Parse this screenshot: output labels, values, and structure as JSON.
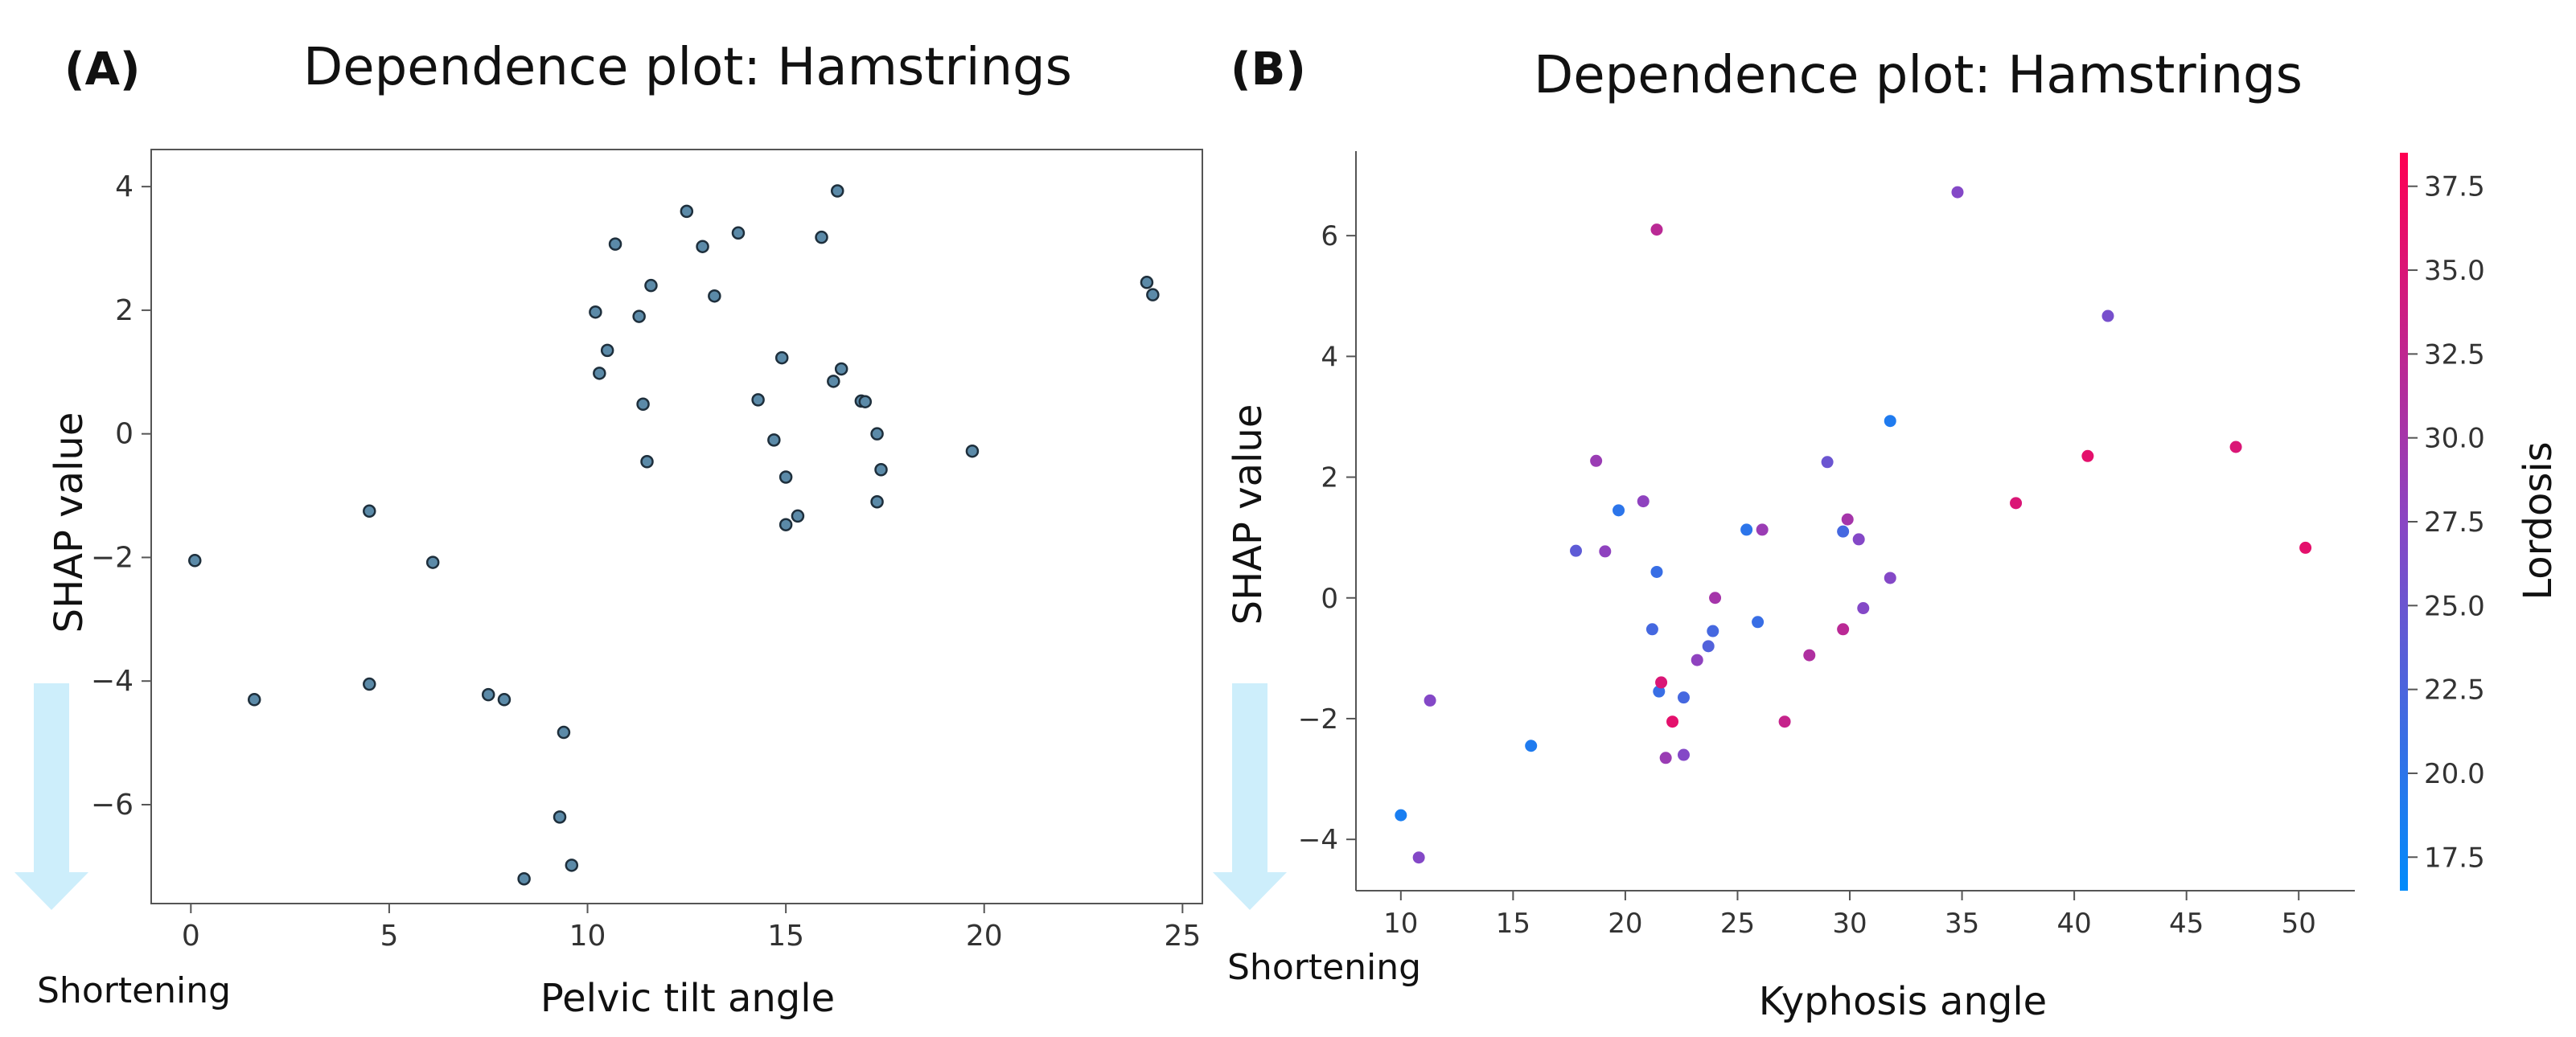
{
  "chart_data": [
    {
      "type": "scatter",
      "panel_label": "(A)",
      "title": "Dependence plot: Hamstrings",
      "xlabel": "Pelvic tilt angle",
      "ylabel": "SHAP value",
      "annotation": "Shortening",
      "xlim": [
        -1,
        25.5
      ],
      "ylim": [
        -7.6,
        4.6
      ],
      "xticks": [
        0,
        5,
        10,
        15,
        20,
        25
      ],
      "yticks": [
        -6,
        -4,
        -2,
        0,
        2,
        4
      ],
      "grid": false,
      "marker_color": "#5b8aa8",
      "marker_edge": "#1e2f3c",
      "points": [
        {
          "x": 0.1,
          "y": -2.05
        },
        {
          "x": 1.6,
          "y": -4.3
        },
        {
          "x": 4.5,
          "y": -1.25
        },
        {
          "x": 4.5,
          "y": -4.05
        },
        {
          "x": 6.1,
          "y": -2.08
        },
        {
          "x": 7.5,
          "y": -4.22
        },
        {
          "x": 7.9,
          "y": -4.3
        },
        {
          "x": 8.4,
          "y": -7.2
        },
        {
          "x": 9.3,
          "y": -6.2
        },
        {
          "x": 9.4,
          "y": -4.83
        },
        {
          "x": 9.6,
          "y": -6.98
        },
        {
          "x": 10.2,
          "y": 1.97
        },
        {
          "x": 10.3,
          "y": 0.98
        },
        {
          "x": 10.5,
          "y": 1.35
        },
        {
          "x": 10.7,
          "y": 3.07
        },
        {
          "x": 11.3,
          "y": 1.9
        },
        {
          "x": 11.4,
          "y": 0.48
        },
        {
          "x": 11.5,
          "y": -0.45
        },
        {
          "x": 11.6,
          "y": 2.4
        },
        {
          "x": 12.5,
          "y": 3.6
        },
        {
          "x": 12.9,
          "y": 3.03
        },
        {
          "x": 13.2,
          "y": 2.23
        },
        {
          "x": 13.8,
          "y": 3.25
        },
        {
          "x": 14.3,
          "y": 0.55
        },
        {
          "x": 14.7,
          "y": -0.1
        },
        {
          "x": 14.9,
          "y": 1.23
        },
        {
          "x": 15.0,
          "y": -0.7
        },
        {
          "x": 15.0,
          "y": -1.47
        },
        {
          "x": 15.3,
          "y": -1.33
        },
        {
          "x": 15.9,
          "y": 3.18
        },
        {
          "x": 16.2,
          "y": 0.85
        },
        {
          "x": 16.3,
          "y": 3.93
        },
        {
          "x": 16.4,
          "y": 1.05
        },
        {
          "x": 16.9,
          "y": 0.53
        },
        {
          "x": 17.0,
          "y": 0.52
        },
        {
          "x": 17.3,
          "y": 0.0
        },
        {
          "x": 17.3,
          "y": -1.1
        },
        {
          "x": 17.4,
          "y": -0.58
        },
        {
          "x": 19.7,
          "y": -0.28
        },
        {
          "x": 24.1,
          "y": 2.45
        },
        {
          "x": 24.25,
          "y": 2.25
        }
      ]
    },
    {
      "type": "scatter",
      "panel_label": "(B)",
      "title": "Dependence plot: Hamstrings",
      "xlabel": "Kyphosis angle",
      "ylabel": "SHAP value",
      "annotation": "Shortening",
      "colorbar_label": "Lordosis",
      "colorbar_range": [
        16.5,
        38.5
      ],
      "colorbar_ticks": [
        "17.5",
        "20.0",
        "22.5",
        "25.0",
        "27.5",
        "30.0",
        "32.5",
        "35.0",
        "37.5"
      ],
      "colormap": [
        "#008bfb",
        "#ff0052"
      ],
      "xlim": [
        8,
        52.5
      ],
      "ylim": [
        -4.85,
        7.4
      ],
      "xticks": [
        10,
        15,
        20,
        25,
        30,
        35,
        40,
        45,
        50
      ],
      "yticks": [
        -4,
        -2,
        0,
        2,
        4,
        6
      ],
      "grid": false,
      "points": [
        {
          "x": 10.0,
          "y": -3.6,
          "c": 18.5
        },
        {
          "x": 10.8,
          "y": -4.3,
          "c": 27
        },
        {
          "x": 11.3,
          "y": -1.7,
          "c": 27
        },
        {
          "x": 15.8,
          "y": -2.45,
          "c": 19
        },
        {
          "x": 17.8,
          "y": 0.78,
          "c": 24
        },
        {
          "x": 18.7,
          "y": 2.27,
          "c": 29
        },
        {
          "x": 19.1,
          "y": 0.77,
          "c": 28
        },
        {
          "x": 19.7,
          "y": 1.45,
          "c": 20
        },
        {
          "x": 20.8,
          "y": 1.6,
          "c": 28
        },
        {
          "x": 21.2,
          "y": -0.52,
          "c": 22
        },
        {
          "x": 21.4,
          "y": 6.1,
          "c": 32
        },
        {
          "x": 21.4,
          "y": 0.43,
          "c": 21
        },
        {
          "x": 21.5,
          "y": -1.55,
          "c": 21
        },
        {
          "x": 21.6,
          "y": -1.4,
          "c": 35
        },
        {
          "x": 21.8,
          "y": -2.65,
          "c": 29
        },
        {
          "x": 22.1,
          "y": -2.05,
          "c": 36
        },
        {
          "x": 22.6,
          "y": -2.6,
          "c": 27
        },
        {
          "x": 22.6,
          "y": -1.65,
          "c": 22
        },
        {
          "x": 23.2,
          "y": -1.03,
          "c": 28
        },
        {
          "x": 23.7,
          "y": -0.8,
          "c": 23
        },
        {
          "x": 23.9,
          "y": -0.55,
          "c": 22
        },
        {
          "x": 24.0,
          "y": 0.0,
          "c": 30
        },
        {
          "x": 25.4,
          "y": 1.13,
          "c": 20
        },
        {
          "x": 25.9,
          "y": -0.4,
          "c": 21
        },
        {
          "x": 26.1,
          "y": 1.13,
          "c": 29
        },
        {
          "x": 27.1,
          "y": -2.05,
          "c": 33
        },
        {
          "x": 28.2,
          "y": -0.95,
          "c": 31
        },
        {
          "x": 29.0,
          "y": 2.25,
          "c": 25
        },
        {
          "x": 29.7,
          "y": -0.52,
          "c": 32
        },
        {
          "x": 29.7,
          "y": 1.1,
          "c": 22
        },
        {
          "x": 29.9,
          "y": 1.3,
          "c": 30
        },
        {
          "x": 30.4,
          "y": 0.97,
          "c": 27
        },
        {
          "x": 30.6,
          "y": -0.17,
          "c": 27
        },
        {
          "x": 31.8,
          "y": 2.93,
          "c": 19
        },
        {
          "x": 31.8,
          "y": 0.33,
          "c": 27
        },
        {
          "x": 34.8,
          "y": 6.72,
          "c": 27
        },
        {
          "x": 37.4,
          "y": 1.57,
          "c": 35
        },
        {
          "x": 40.6,
          "y": 2.35,
          "c": 36
        },
        {
          "x": 41.5,
          "y": 4.67,
          "c": 26
        },
        {
          "x": 47.2,
          "y": 2.5,
          "c": 35
        },
        {
          "x": 50.3,
          "y": 0.83,
          "c": 36
        }
      ]
    }
  ]
}
